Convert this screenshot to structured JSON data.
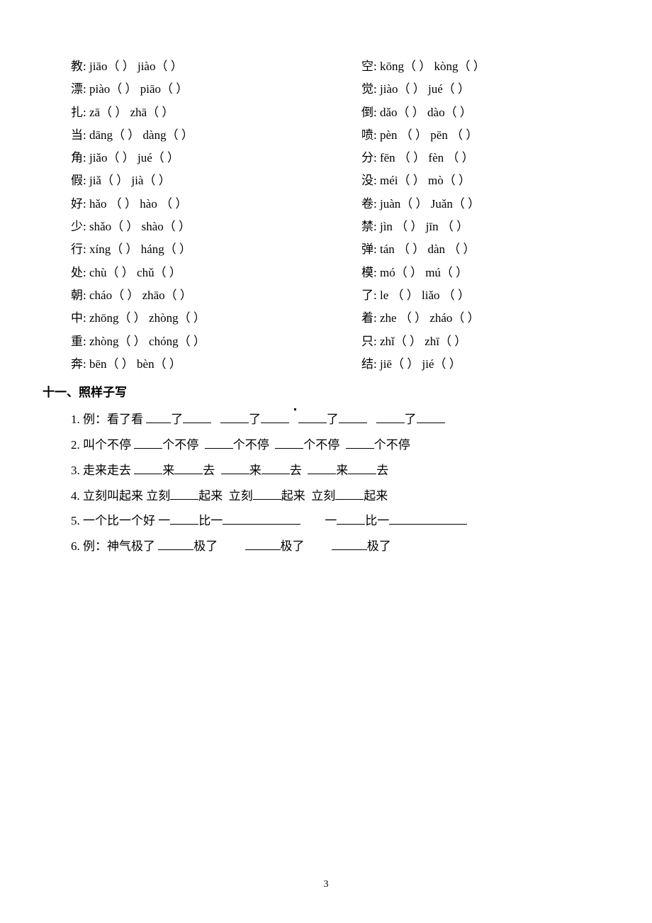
{
  "left": [
    "教: jiāo（    ）  jiào（    ）",
    "漂: piào（    ）  piāo（    ）",
    "扎: zā（    ）    zhā（    ）",
    "当: dāng（    ）  dàng（    ）",
    "角: jiǎo（    ） jué（    ）",
    "假: jiǎ（    ）   jià（    ）",
    "好: hǎo （    ）  hào （    ）",
    "少: shǎo（    ）  shào（    ）",
    "行: xíng（    ）  háng（    ）",
    "处: chù（    ）   chǔ（    ）",
    "朝: cháo（    ）  zhāo（    ）",
    "中: zhōng（    ） zhòng（    ）",
    "重: zhòng（    ） chóng（    ）",
    "奔: bēn（    ）   bèn（    ）"
  ],
  "right": [
    "空: kōng（    ）  kòng（    ）",
    "觉: jiào（    ）  jué（    ）",
    "倒: dǎo（    ）   dào（    ）",
    "喷: pèn （    ）  pēn （    ）",
    "分: fēn （    ）  fèn （    ）",
    "没: méi（    ）   mò（    ）",
    "卷: juàn（    ）  Juǎn（    ）",
    "禁: jìn （    ）  jīn （    ）",
    "弹: tán （    ）  dàn （    ）",
    "模: mó（    ）    mú（    ）",
    "了: le （    ）   liǎo （    ）",
    "着: zhe （    ）  zháo（    ）",
    "只: zhǐ（    ）   zhī（    ）",
    "结: jiē（    ）  jié（    ）"
  ],
  "sectionTitle": "十一、照样子写",
  "ex1_prefix": "1. 例：看了看 ",
  "ex2_prefix": "2. 叫个不停   ",
  "ex3_prefix": "3. 走来走去  ",
  "ex4_prefix": "4. 立刻叫起来   立刻",
  "ex5_prefix": "5. 一个比一个好    一",
  "ex6_prefix": "6. 例：神气极了   ",
  "le": "了",
  "gbt": "个不停",
  "lai": "来",
  "qu": "去",
  "lk": "立刻",
  "qlai": "起来",
  "yi": "一",
  "bi": "比一",
  "jile": "极了",
  "pageNumber": "3"
}
